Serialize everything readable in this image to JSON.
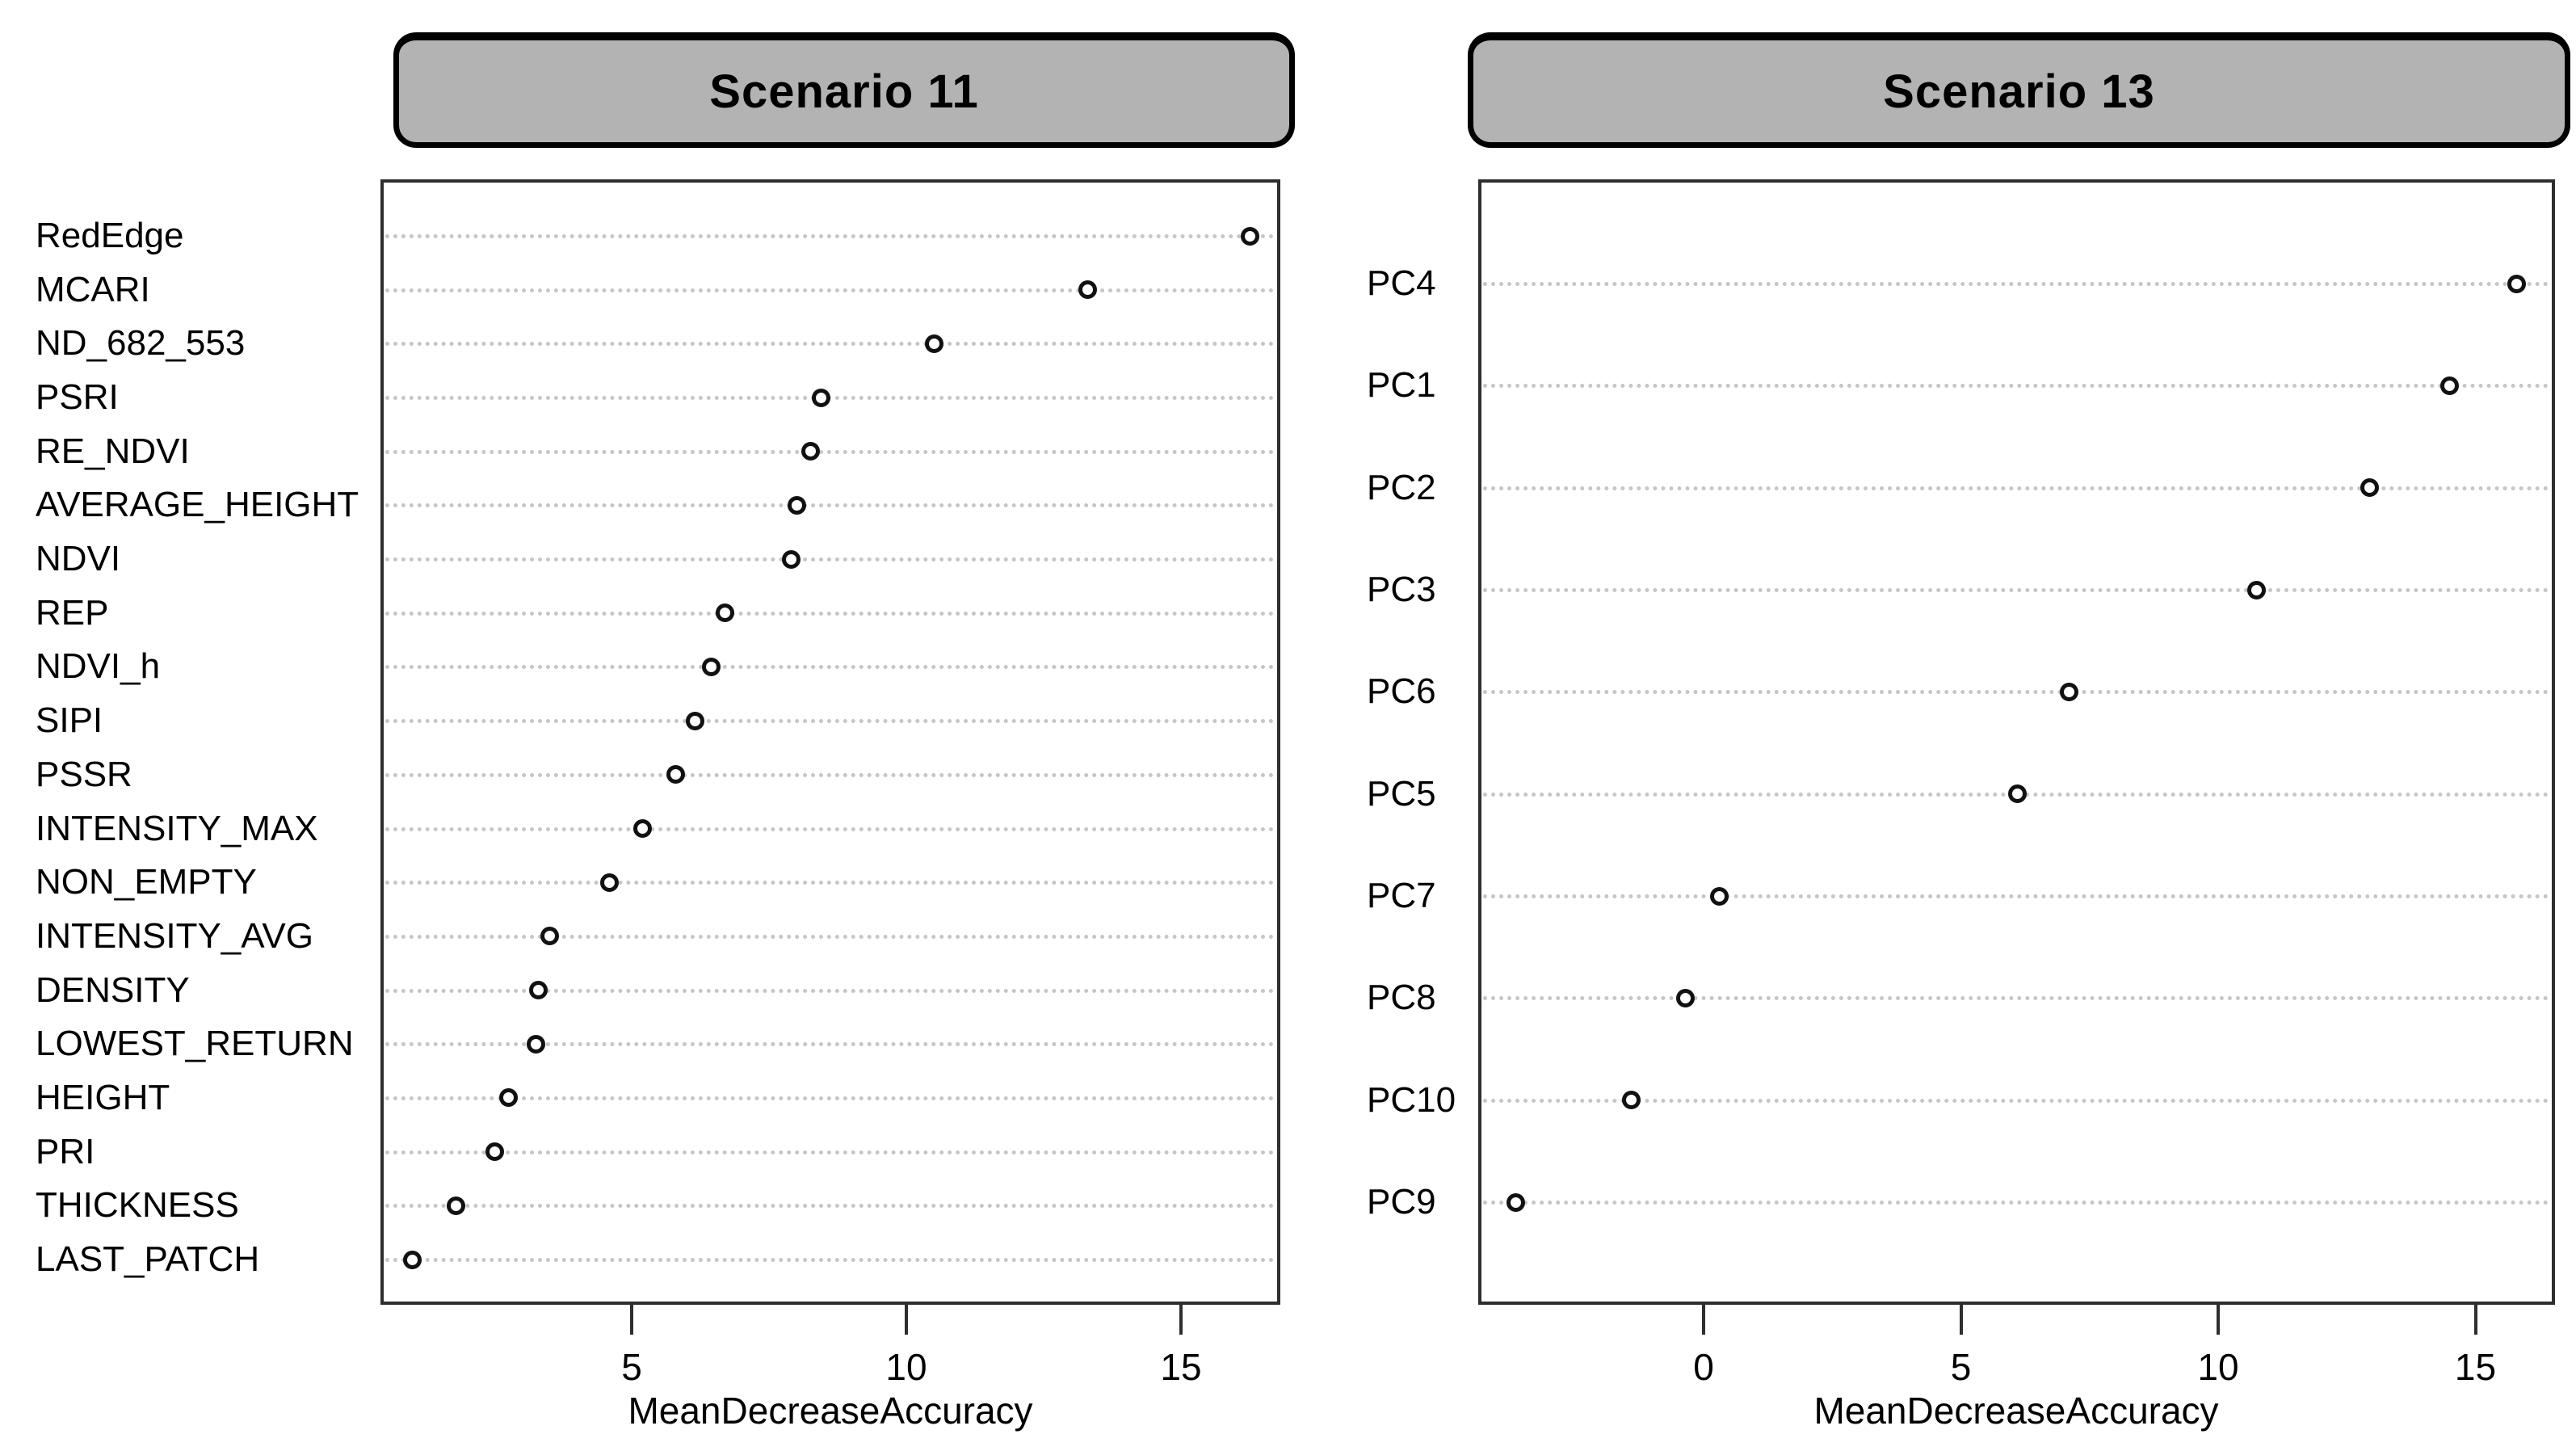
{
  "chart_data": [
    {
      "type": "scatter",
      "variant": "dotchart-horizontal",
      "title": "Scenario 11",
      "xlabel": "MeanDecreaseAccuracy",
      "categories": [
        "RedEdge",
        "MCARI",
        "ND_682_553",
        "PSRI",
        "RE_NDVI",
        "AVERAGE_HEIGHT",
        "NDVI",
        "REP",
        "NDVI_h",
        "SIPI",
        "PSSR",
        "INTENSITY_MAX",
        "NON_EMPTY",
        "INTENSITY_AVG",
        "DENSITY",
        "LOWEST_RETURN",
        "HEIGHT",
        "PRI",
        "THICKNESS",
        "LAST_PATCH"
      ],
      "values": [
        16.25,
        13.3,
        10.5,
        8.45,
        8.25,
        8.0,
        7.9,
        6.7,
        6.45,
        6.15,
        5.8,
        5.2,
        4.6,
        3.5,
        3.3,
        3.25,
        2.75,
        2.5,
        1.8,
        1.0
      ],
      "xticks": [
        5,
        10,
        15
      ],
      "xlim": [
        0.4,
        16.9
      ],
      "grid": "dotted-horizontal",
      "legend": "none",
      "marker": "open-circle",
      "title_box_fill": "#b3b3b3",
      "title_box_border": "#000000",
      "grid_color": "#c6c6c6",
      "marker_color": "#111111"
    },
    {
      "type": "scatter",
      "variant": "dotchart-horizontal",
      "title": "Scenario 13",
      "xlabel": "MeanDecreaseAccuracy",
      "categories": [
        "PC4",
        "PC1",
        "PC2",
        "PC3",
        "PC6",
        "PC5",
        "PC7",
        "PC8",
        "PC10",
        "PC9"
      ],
      "values": [
        15.8,
        14.5,
        12.95,
        10.75,
        7.1,
        6.1,
        0.3,
        -0.35,
        -1.4,
        -3.65
      ],
      "xticks": [
        0,
        5,
        10,
        15
      ],
      "xlim": [
        -4.4,
        16.55
      ],
      "grid": "dotted-horizontal",
      "legend": "none",
      "marker": "open-circle",
      "title_box_fill": "#b3b3b3",
      "title_box_border": "#000000",
      "grid_color": "#c6c6c6",
      "marker_color": "#111111"
    }
  ]
}
